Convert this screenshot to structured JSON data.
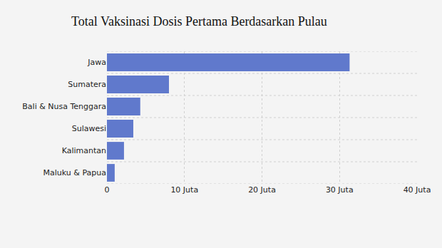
{
  "chart_data": {
    "type": "bar",
    "title": "Total Vaksinasi Dosis Pertama Berdasarkan Pulau",
    "orientation": "horizontal",
    "categories": [
      "Jawa",
      "Sumatera",
      "Bali & Nusa Tenggara",
      "Sulawesi",
      "Kalimantan",
      "Maluku & Papua"
    ],
    "values": [
      31.3,
      8.0,
      4.3,
      3.4,
      2.2,
      1.0
    ],
    "color": "#6079cc",
    "xlim": [
      0,
      40
    ],
    "xticks": [
      0,
      {
        "value": 10,
        "label": "10 Juta"
      },
      {
        "value": 20,
        "label": "20 Juta"
      },
      {
        "value": 30,
        "label": "30 Juta"
      },
      {
        "value": 40,
        "label": "40 Juta"
      }
    ],
    "grid": true
  }
}
